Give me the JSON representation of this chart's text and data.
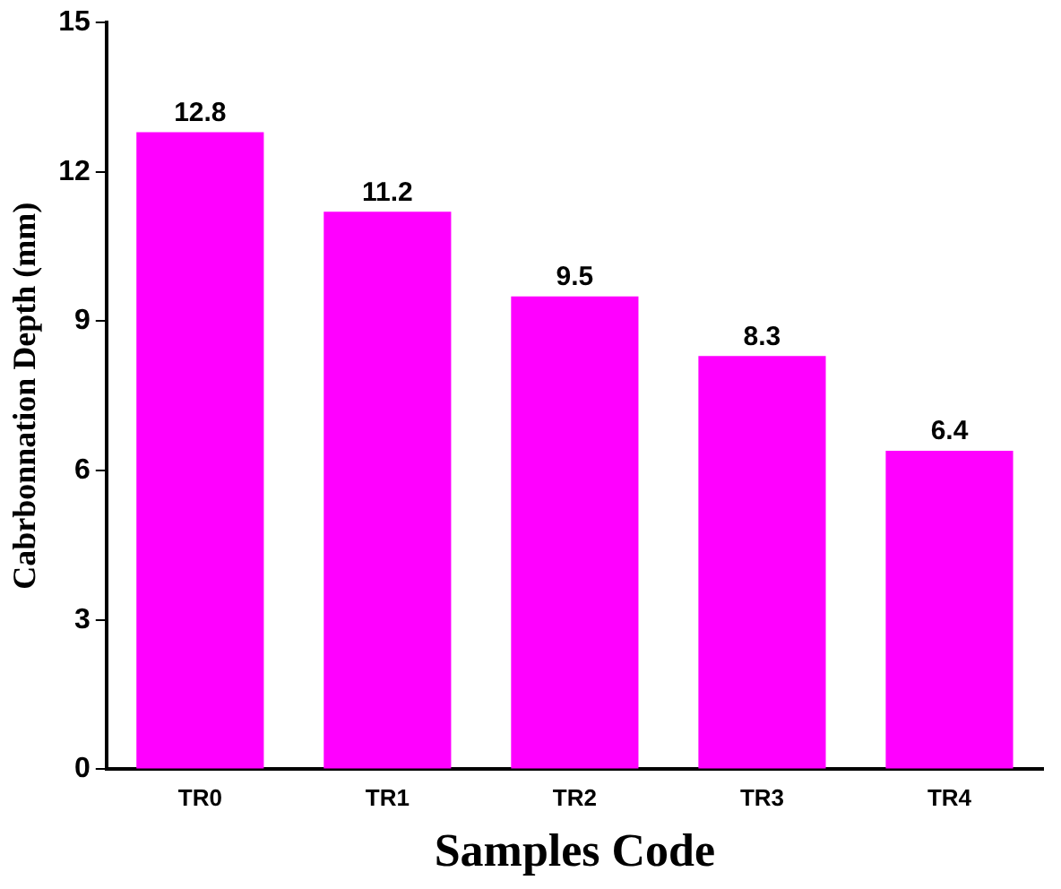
{
  "chart_data": {
    "type": "bar",
    "xlabel": "Samples Code",
    "ylabel": "Cabrbonnation Depth (mm)",
    "categories": [
      "TR0",
      "TR1",
      "TR2",
      "TR3",
      "TR4"
    ],
    "values": [
      12.8,
      11.2,
      9.5,
      8.3,
      6.4
    ],
    "color": "#ff00ff",
    "ylim": [
      0,
      15
    ],
    "yticks": [
      0,
      3,
      6,
      9,
      12,
      15
    ],
    "data_labels": true,
    "grid": false,
    "legend": false
  }
}
